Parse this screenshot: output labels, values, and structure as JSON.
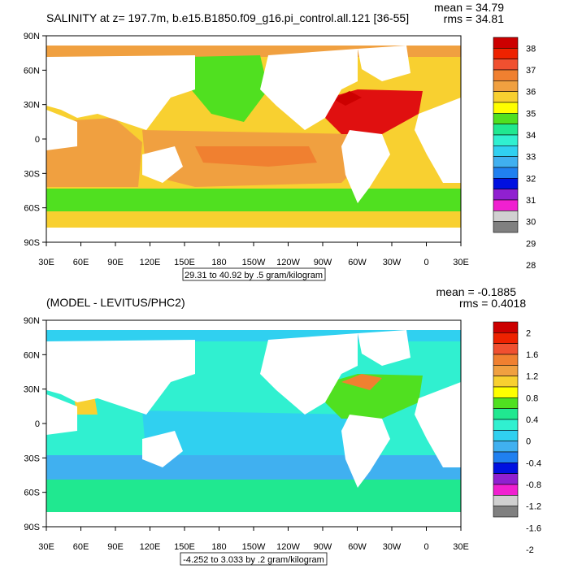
{
  "panels": [
    {
      "id": "top",
      "title": "SALINITY at z= 197.7m, b.e15.B1850.f09_g16.pi_control.all.121 [36-55]",
      "stats": {
        "mean": "mean = 34.79",
        "rms": "rms = 34.81"
      },
      "range_label": "29.31 to 40.92 by .5 gram/kilogram",
      "lat_labels": [
        "90N",
        "60N",
        "30N",
        "0",
        "30S",
        "60S",
        "90S"
      ],
      "lon_labels": [
        "30E",
        "60E",
        "90E",
        "120E",
        "150E",
        "180",
        "150W",
        "120W",
        "90W",
        "60W",
        "30W",
        "0",
        "30E"
      ],
      "colorbar": {
        "labels": [
          "38",
          "37",
          "36",
          "35",
          "34",
          "33",
          "32",
          "31",
          "30",
          "29",
          "28"
        ],
        "colors": [
          "#cc0000",
          "#ee2200",
          "#f05030",
          "#f08030",
          "#f0a040",
          "#f8d030",
          "#ffff00",
          "#50e020",
          "#20e890",
          "#30f0d0",
          "#30d0f0",
          "#40b0f0",
          "#2080f0",
          "#0010e0",
          "#9020d0",
          "#f020d0",
          "#d0d0d0",
          "#808080"
        ]
      },
      "field_colors": {
        "land": "#ffffff",
        "background": "#f8d030",
        "atlantic_north": "#e01010",
        "pacific_band": "#f0a040",
        "southern_ocean": "#50e020",
        "indian": "#f0a040",
        "subpolar": "#f8d030"
      }
    },
    {
      "id": "bottom",
      "title": "(MODEL - LEVITUS/PHC2)",
      "stats": {
        "mean": "mean = -0.1885",
        "rms": "rms = 0.4018"
      },
      "range_label": "-4.252 to 3.033 by .2 gram/kilogram",
      "lat_labels": [
        "90N",
        "60N",
        "30N",
        "0",
        "30S",
        "60S",
        "90S"
      ],
      "lon_labels": [
        "30E",
        "60E",
        "90E",
        "120E",
        "150E",
        "180",
        "150W",
        "120W",
        "90W",
        "60W",
        "30W",
        "0",
        "30E"
      ],
      "colorbar": {
        "labels": [
          "2",
          "1.6",
          "1.2",
          "0.8",
          "0.4",
          "0",
          "-0.4",
          "-0.8",
          "-1.2",
          "-1.6",
          "-2"
        ],
        "colors": [
          "#cc0000",
          "#ee2200",
          "#f05030",
          "#f08030",
          "#f0a040",
          "#f8d030",
          "#ffff00",
          "#50e020",
          "#20e890",
          "#30f0d0",
          "#30d0f0",
          "#40b0f0",
          "#2080f0",
          "#0010e0",
          "#9020d0",
          "#f020d0",
          "#d0d0d0",
          "#808080"
        ]
      },
      "field_colors": {
        "land": "#ffffff",
        "background": "#30f0d0",
        "atlantic_north": "#50e020",
        "pacific_band": "#30d0f0",
        "southern_ocean": "#40b0f0",
        "indian": "#30f0d0",
        "subpolar": "#30f0d0"
      }
    }
  ]
}
